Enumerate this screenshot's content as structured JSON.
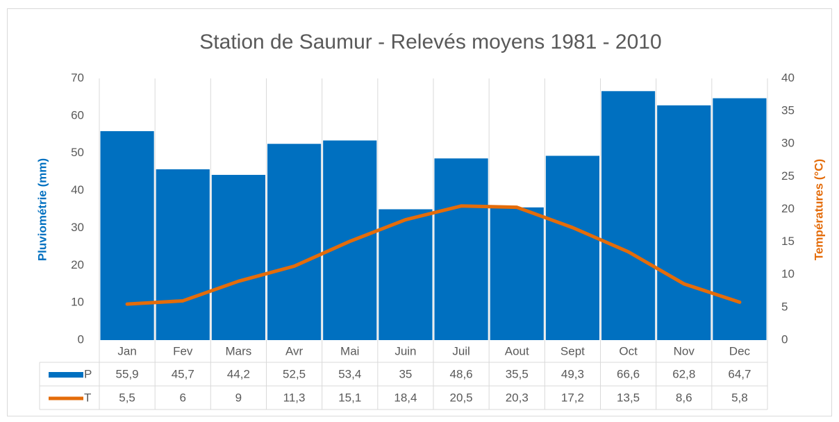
{
  "chart_data": {
    "type": "bar",
    "title": "Station de Saumur - Relevés moyens 1981 - 2010",
    "y_axis_label": "Pluviométrie  (mm)",
    "y2_axis_label": "Températures  (°C)",
    "categories": [
      "Jan",
      "Fev",
      "Mars",
      "Avr",
      "Mai",
      "Juin",
      "Juil",
      "Aout",
      "Sept",
      "Oct",
      "Nov",
      "Dec"
    ],
    "series": [
      {
        "name": "P",
        "type": "bar",
        "color": "#0070c0",
        "values": [
          55.9,
          45.7,
          44.2,
          52.5,
          53.4,
          35,
          48.6,
          35.5,
          49.3,
          66.6,
          62.8,
          64.7
        ],
        "value_labels": [
          "55,9",
          "45,7",
          "44,2",
          "52,5",
          "53,4",
          "35",
          "48,6",
          "35,5",
          "49,3",
          "66,6",
          "62,8",
          "64,7"
        ]
      },
      {
        "name": "T",
        "type": "line",
        "axis": "y2",
        "color": "#e46c0a",
        "values": [
          5.5,
          6,
          9,
          11.3,
          15.1,
          18.4,
          20.5,
          20.3,
          17.2,
          13.5,
          8.6,
          5.8
        ],
        "value_labels": [
          "5,5",
          "6",
          "9",
          "11,3",
          "15,1",
          "18,4",
          "20,5",
          "20,3",
          "17,2",
          "13,5",
          "8,6",
          "5,8"
        ]
      }
    ],
    "ylim": [
      0,
      70
    ],
    "yticks": [
      0,
      10,
      20,
      30,
      40,
      50,
      60,
      70
    ],
    "y2lim": [
      0,
      40
    ],
    "y2ticks": [
      0,
      5,
      10,
      15,
      20,
      25,
      30,
      35,
      40
    ]
  }
}
